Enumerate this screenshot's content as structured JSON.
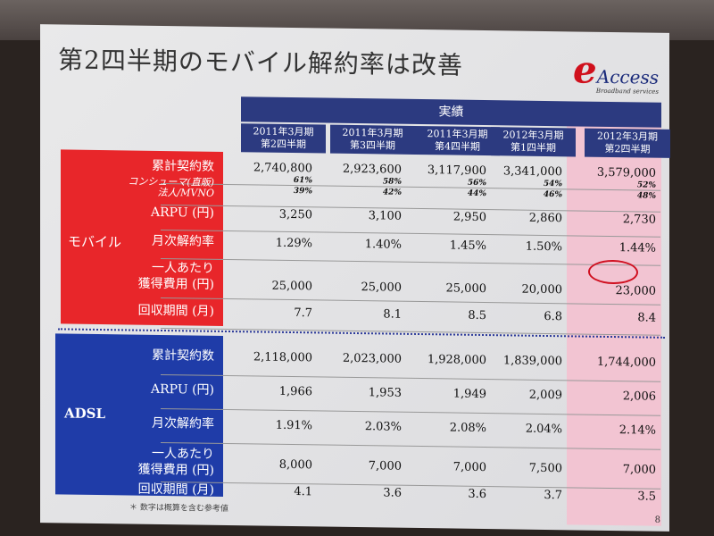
{
  "slide": {
    "title": "第2四半期のモバイル解約率は改善",
    "logo": {
      "mark": "e",
      "name": "Access",
      "tagline": "Broadband services"
    },
    "header_group": "実績",
    "columns": [
      "2011年3月期\n第2四半期",
      "2011年3月期\n第3四半期",
      "2011年3月期\n第4四半期",
      "2012年3月期\n第1四半期",
      "2012年3月期\n第2四半期"
    ],
    "highlight_color": "#f2c4d2",
    "mobile": {
      "label": "モバイル",
      "color": "#e8262a",
      "rows": [
        {
          "label": "累計契約数",
          "values": [
            "2,740,800",
            "2,923,600",
            "3,117,900",
            "3,341,000",
            "3,579,000"
          ]
        },
        {
          "label": "コンシューマ(直販)",
          "values": [
            "61%",
            "58%",
            "56%",
            "54%",
            "52%"
          ]
        },
        {
          "label": "法人/MVNO",
          "values": [
            "39%",
            "42%",
            "44%",
            "46%",
            "48%"
          ]
        },
        {
          "label": "ARPU (円)",
          "values": [
            "3,250",
            "3,100",
            "2,950",
            "2,860",
            "2,730"
          ]
        },
        {
          "label": "月次解約率",
          "values": [
            "1.29%",
            "1.40%",
            "1.45%",
            "1.50%",
            "1.44%"
          ]
        },
        {
          "label": "一人あたり\n獲得費用 (円)",
          "values": [
            "25,000",
            "25,000",
            "25,000",
            "20,000",
            "23,000"
          ]
        },
        {
          "label": "回収期間 (月)",
          "values": [
            "7.7",
            "8.1",
            "8.5",
            "6.8",
            "8.4"
          ]
        }
      ]
    },
    "adsl": {
      "label": "ADSL",
      "color": "#1f3ca8",
      "rows": [
        {
          "label": "累計契約数",
          "values": [
            "2,118,000",
            "2,023,000",
            "1,928,000",
            "1,839,000",
            "1,744,000"
          ]
        },
        {
          "label": "ARPU (円)",
          "values": [
            "1,966",
            "1,953",
            "1,949",
            "2,009",
            "2,006"
          ]
        },
        {
          "label": "月次解約率",
          "values": [
            "1.91%",
            "2.03%",
            "2.08%",
            "2.04%",
            "2.14%"
          ]
        },
        {
          "label": "一人あたり\n獲得費用 (円)",
          "values": [
            "8,000",
            "7,000",
            "7,000",
            "7,500",
            "7,000"
          ]
        },
        {
          "label": "回収期間 (月)",
          "values": [
            "4.1",
            "3.6",
            "3.6",
            "3.7",
            "3.5"
          ]
        }
      ]
    },
    "footnote": "＊ 数字は概算を含む参考値",
    "page_number": "8"
  }
}
